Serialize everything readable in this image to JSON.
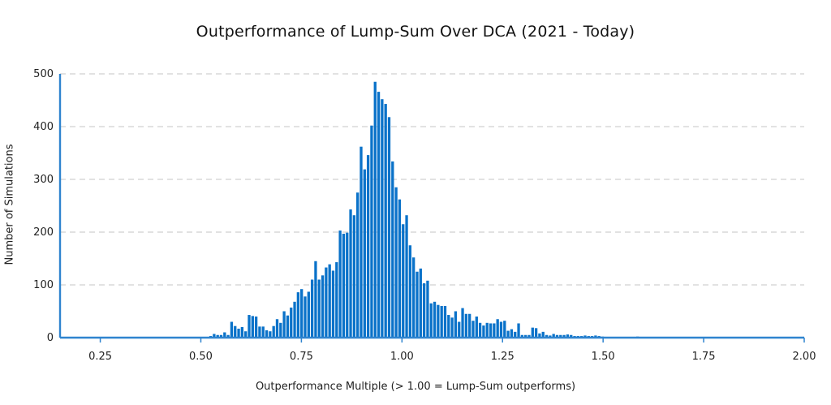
{
  "chart_data": {
    "type": "bar",
    "title": "Outperformance of Lump-Sum Over DCA (2021 - Today)",
    "xlabel": "Outperformance Multiple (> 1.00 = Lump-Sum outperforms)",
    "ylabel": "Number of Simulations",
    "xlim": [
      0.15,
      2.0
    ],
    "ylim": [
      0,
      500
    ],
    "x_ticks": [
      "0.25",
      "0.50",
      "0.75",
      "1.00",
      "1.25",
      "1.50",
      "1.75",
      "2.00"
    ],
    "y_ticks": [
      "0",
      "100",
      "200",
      "300",
      "400",
      "500"
    ],
    "grid": "horizontal dashed",
    "bar_color": "#0a72c9",
    "bin_start": 0.52,
    "bin_width": 0.0087,
    "values": [
      3,
      7,
      5,
      5,
      10,
      5,
      30,
      22,
      17,
      20,
      12,
      43,
      41,
      40,
      21,
      21,
      14,
      12,
      22,
      35,
      28,
      50,
      42,
      57,
      68,
      86,
      92,
      78,
      87,
      110,
      145,
      110,
      118,
      133,
      139,
      127,
      143,
      203,
      197,
      199,
      243,
      232,
      275,
      362,
      319,
      346,
      402,
      485,
      466,
      452,
      443,
      418,
      334,
      285,
      262,
      215,
      232,
      175,
      152,
      125,
      131,
      103,
      108,
      65,
      68,
      62,
      60,
      60,
      43,
      38,
      50,
      30,
      56,
      45,
      45,
      32,
      40,
      28,
      23,
      28,
      27,
      27,
      35,
      30,
      32,
      13,
      16,
      11,
      27,
      5,
      5,
      5,
      19,
      18,
      8,
      11,
      5,
      4,
      7,
      5,
      5,
      5,
      6,
      5,
      3,
      3,
      3,
      4,
      3,
      3,
      4,
      3,
      2,
      0,
      0,
      0,
      0,
      0,
      0,
      0,
      0,
      0,
      2,
      1,
      0
    ]
  }
}
